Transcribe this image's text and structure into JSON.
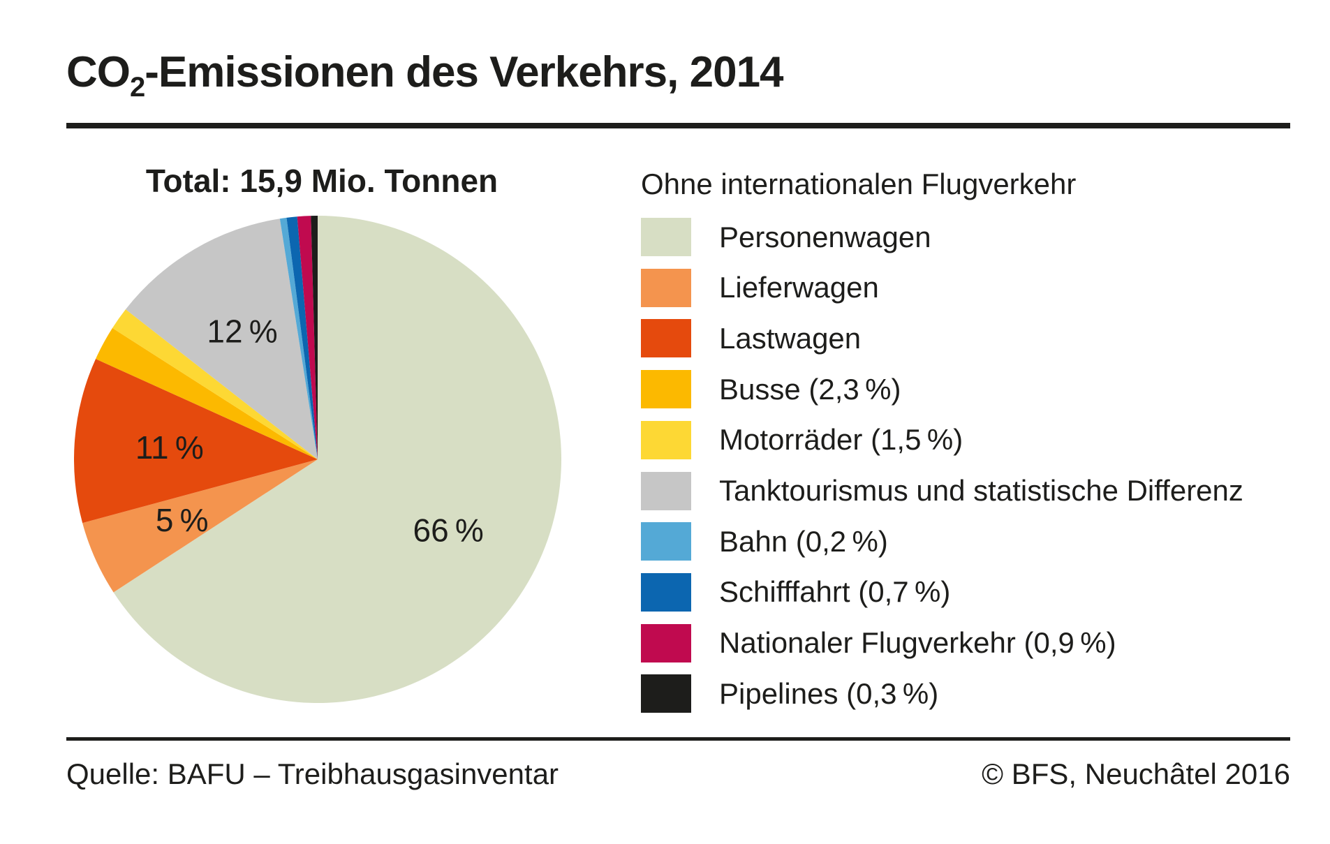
{
  "header": {
    "title_co": "CO",
    "title_sub": "2",
    "title_rest": "-Emissionen des Verkehrs, 2014"
  },
  "pie": {
    "title": "Total: 15,9 Mio. Tonnen"
  },
  "legend": {
    "title": "Ohne internationalen Flugverkehr",
    "items": [
      {
        "label": "Personenwagen",
        "color": "#d7dec4"
      },
      {
        "label": "Lieferwagen",
        "color": "#f4944e"
      },
      {
        "label": "Lastwagen",
        "color": "#e54a0d"
      },
      {
        "label": "Busse (2,3 %)",
        "color": "#fcb900"
      },
      {
        "label": "Motorräder (1,5 %)",
        "color": "#fdd834"
      },
      {
        "label": "Tanktourismus und statistische Differenz",
        "color": "#c6c6c6"
      },
      {
        "label": "Bahn (0,2 %)",
        "color": "#54a9d6"
      },
      {
        "label": "Schifffahrt (0,7 %)",
        "color": "#0c66b0"
      },
      {
        "label": "Nationaler Flugverkehr (0,9 %)",
        "color": "#c00a4f"
      },
      {
        "label": "Pipelines (0,3 %)",
        "color": "#1d1d1b"
      }
    ]
  },
  "footer": {
    "source": "Quelle: BAFU – Treibhausgasinventar",
    "copyright": "© BFS, Neuchâtel 2016"
  },
  "chart_data": {
    "type": "pie",
    "title": "CO2-Emissionen des Verkehrs, 2014",
    "subtitle": "Total: 15,9 Mio. Tonnen",
    "note": "Ohne internationalen Flugverkehr",
    "unit": "%",
    "start_angle": "12 o'clock, clockwise",
    "categories": [
      "Personenwagen",
      "Lieferwagen",
      "Lastwagen",
      "Busse",
      "Motorräder",
      "Tanktourismus und statistische Differenz",
      "Bahn",
      "Schifffahrt",
      "Nationaler Flugverkehr",
      "Pipelines"
    ],
    "values": [
      66,
      5,
      11,
      2.3,
      1.5,
      12,
      0.2,
      0.7,
      0.9,
      0.3
    ],
    "colors": [
      "#d7dec4",
      "#f4944e",
      "#e54a0d",
      "#fcb900",
      "#fdd834",
      "#c6c6c6",
      "#54a9d6",
      "#0c66b0",
      "#c00a4f",
      "#1d1d1b"
    ],
    "slice_labels": [
      "66 %",
      "5 %",
      "11 %",
      null,
      null,
      "12 %",
      null,
      null,
      null,
      null
    ],
    "legend_position": "right",
    "source": "Quelle: BAFU – Treibhausgasinventar",
    "copyright": "© BFS, Neuchâtel 2016"
  }
}
